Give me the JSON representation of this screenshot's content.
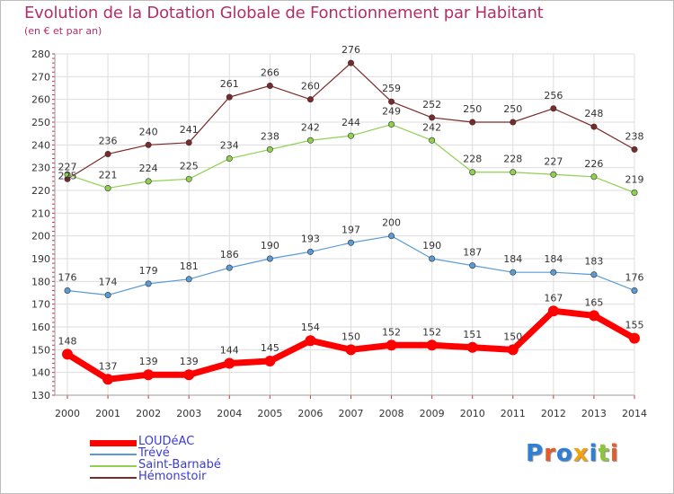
{
  "title": "Evolution de la Dotation Globale de Fonctionnement par Habitant",
  "subtitle": "(en € et par an)",
  "logo_text": "Proxiti",
  "chart_data": {
    "type": "line",
    "title": "Evolution de la Dotation Globale de Fonctionnement par Habitant",
    "ylabel": "(en € et par an)",
    "xlabel": "",
    "ylim": [
      130,
      280
    ],
    "yticks": [
      130,
      140,
      150,
      160,
      170,
      180,
      190,
      200,
      210,
      220,
      230,
      240,
      250,
      260,
      270,
      280
    ],
    "categories": [
      "2000",
      "2001",
      "2002",
      "2003",
      "2004",
      "2005",
      "2006",
      "2007",
      "2008",
      "2009",
      "2010",
      "2011",
      "2012",
      "2013",
      "2014"
    ],
    "grid": true,
    "series": [
      {
        "name": "LOUDéAC",
        "color": "#ff0000",
        "values": [
          148,
          137,
          139,
          139,
          144,
          145,
          154,
          150,
          152,
          152,
          151,
          150,
          167,
          165,
          155
        ]
      },
      {
        "name": "Trévé",
        "color": "#5b9bd5",
        "values": [
          176,
          174,
          179,
          181,
          186,
          190,
          193,
          197,
          200,
          190,
          187,
          184,
          184,
          183,
          176
        ]
      },
      {
        "name": "Saint-Barnabé",
        "color": "#8fd14f",
        "values": [
          227,
          221,
          224,
          225,
          234,
          238,
          242,
          244,
          249,
          242,
          228,
          228,
          227,
          226,
          219
        ]
      },
      {
        "name": "Hémonstoir",
        "color": "#7a2a2a",
        "values": [
          225,
          236,
          240,
          241,
          261,
          266,
          260,
          276,
          259,
          252,
          250,
          250,
          256,
          248,
          238
        ]
      }
    ]
  }
}
